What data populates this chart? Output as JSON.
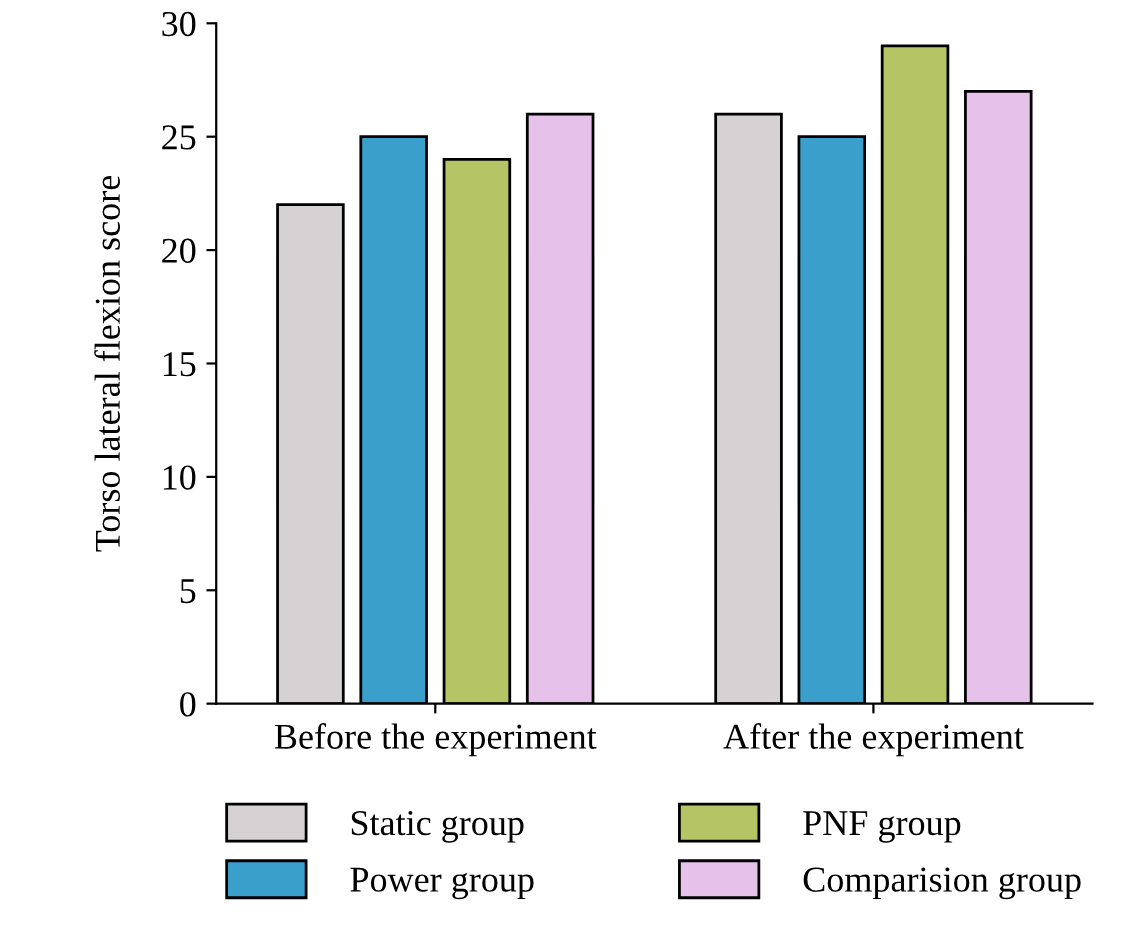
{
  "chart_data": {
    "type": "bar",
    "ylabel": "Torso lateral flexion score",
    "categories": [
      "Before the experiment",
      "After the experiment"
    ],
    "series": [
      {
        "name": "Static group",
        "color": "#d6d2d3",
        "values": [
          22,
          26
        ]
      },
      {
        "name": "Power group",
        "color": "#3b9fcc",
        "values": [
          25,
          25
        ]
      },
      {
        "name": "PNF group",
        "color": "#b5c465",
        "values": [
          24,
          29
        ]
      },
      {
        "name": "Comparision group",
        "color": "#e6c1ea",
        "values": [
          26,
          27
        ]
      }
    ],
    "ylim": [
      0,
      30
    ],
    "yticks": [
      0,
      5,
      10,
      15,
      20,
      25,
      30
    ],
    "grid": false,
    "legend": "bottom"
  }
}
